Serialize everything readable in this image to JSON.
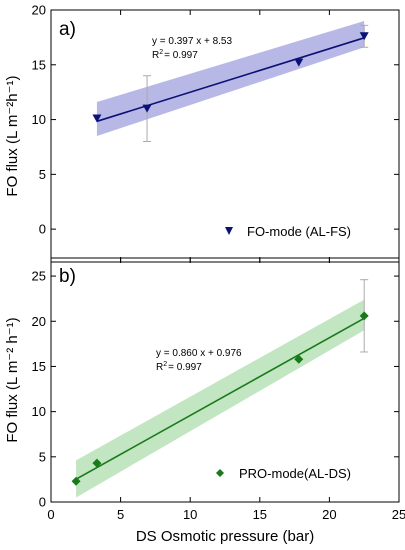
{
  "chart_data": [
    {
      "type": "scatter",
      "panel_label": "a)",
      "ylabel": "FO flux (L m⁻²h⁻¹)",
      "xlabel": "",
      "xlim": [
        0,
        25
      ],
      "ylim": [
        -3,
        20
      ],
      "x_ticks": [
        0,
        5,
        10,
        15,
        20,
        25
      ],
      "y_ticks": [
        0,
        5,
        10,
        15,
        20
      ],
      "x_ticklabels_shown": false,
      "series": [
        {
          "name": "FO-mode (AL-FS)",
          "marker": "triangle-down",
          "color": "#0b1176",
          "x": [
            3.3,
            6.9,
            17.8,
            22.5
          ],
          "y": [
            10.1,
            11.0,
            15.2,
            17.6
          ],
          "error_bars": [
            null,
            [
              8.0,
              14.0
            ],
            null,
            [
              16.6,
              18.6
            ]
          ],
          "fit": {
            "slope": 0.397,
            "intercept": 8.53
          },
          "confidence_band": {
            "x": [
              3.3,
              22.5
            ],
            "lower": [
              8.5,
              16.6
            ],
            "upper": [
              11.6,
              19.0
            ]
          }
        }
      ],
      "equation": "y = 0.397 x + 8.53",
      "r2_prefix": "R",
      "r2_sup": "2",
      "r2_value": "= 0.997",
      "legend_position": "bottom-right",
      "band_color": "#7b7ed2",
      "grid": false
    },
    {
      "type": "scatter",
      "panel_label": "b)",
      "ylabel": "FO flux (L m⁻² h⁻¹)",
      "xlabel": "DS Osmotic pressure (bar)",
      "xlim": [
        0,
        25
      ],
      "ylim": [
        0,
        27
      ],
      "x_ticks": [
        0,
        5,
        10,
        15,
        20,
        25
      ],
      "y_ticks": [
        0,
        5,
        10,
        15,
        20,
        25
      ],
      "x_ticklabels_shown": true,
      "series": [
        {
          "name": "PRO-mode(AL-DS)",
          "marker": "diamond",
          "color": "#1a7a1a",
          "x": [
            1.8,
            3.3,
            17.8,
            22.5
          ],
          "y": [
            2.3,
            4.3,
            15.8,
            20.6
          ],
          "error_bars": [
            null,
            null,
            null,
            [
              16.6,
              24.6
            ]
          ],
          "fit": {
            "slope": 0.86,
            "intercept": 0.976
          },
          "confidence_band": {
            "x": [
              1.8,
              22.5
            ],
            "lower": [
              0.5,
              19.0
            ],
            "upper": [
              4.6,
              22.4
            ]
          }
        }
      ],
      "equation": "y = 0.860 x + 0.976",
      "r2_prefix": "R",
      "r2_sup": "2",
      "r2_value": "= 0.997",
      "legend_position": "bottom-right",
      "band_color": "#8fd08f",
      "grid": false
    }
  ]
}
